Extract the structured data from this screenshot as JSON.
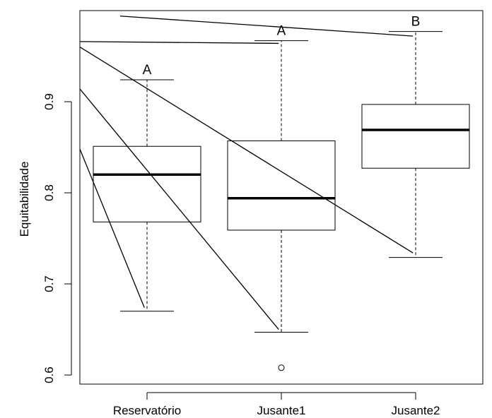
{
  "chart_data": {
    "type": "boxplot",
    "title": "",
    "xlabel": "",
    "ylabel": "Equitabilidade",
    "ylim": [
      0.59,
      1.0
    ],
    "y_ticks": [
      0.6,
      0.7,
      0.8,
      0.9
    ],
    "y_tick_labels": [
      "0.6",
      "0.7",
      "0.8",
      "0.9"
    ],
    "grid": false,
    "legend": "none",
    "categories": [
      "Reservatório",
      "Jusante1",
      "Jusante2"
    ],
    "boxes": [
      {
        "category": "Reservatório",
        "whisker_low": 0.67,
        "q1": 0.768,
        "median": 0.82,
        "q3": 0.851,
        "whisker_high": 0.924,
        "outliers": [],
        "letter": "A"
      },
      {
        "category": "Jusante1",
        "whisker_low": 0.647,
        "q1": 0.759,
        "median": 0.794,
        "q3": 0.857,
        "whisker_high": 0.967,
        "outliers": [
          0.608
        ],
        "letter": "A"
      },
      {
        "category": "Jusante2",
        "whisker_low": 0.729,
        "q1": 0.827,
        "median": 0.869,
        "q3": 0.897,
        "whisker_high": 0.977,
        "outliers": [],
        "letter": "B"
      }
    ],
    "overlay_lines": [
      {
        "from": [
          0.5,
          0.848
        ],
        "to": [
          0.98,
          0.674
        ]
      },
      {
        "from": [
          0.5,
          0.914
        ],
        "to": [
          1.98,
          0.65
        ]
      },
      {
        "from": [
          0.5,
          0.96
        ],
        "to": [
          2.98,
          0.734
        ]
      },
      {
        "from": [
          0.5,
          0.966
        ],
        "to": [
          1.98,
          0.964
        ]
      },
      {
        "from": [
          0.8,
          0.994
        ],
        "to": [
          2.98,
          0.972
        ]
      }
    ],
    "line_color": "#000000",
    "background_color": "#ffffff"
  }
}
